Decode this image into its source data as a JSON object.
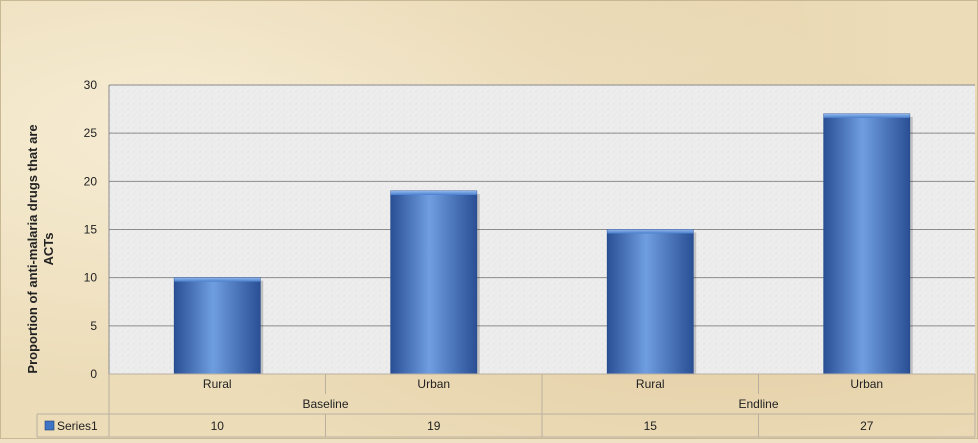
{
  "chart_data": {
    "type": "bar",
    "title": "",
    "xlabel": "",
    "ylabel": "Proportion of anti-malaria drugs that are ACTs",
    "ylim": [
      0,
      30
    ],
    "yticks": [
      "0",
      "5",
      "10",
      "15",
      "20",
      "25",
      "30"
    ],
    "categories": [
      "Rural",
      "Urban",
      "Rural",
      "Urban"
    ],
    "groups": [
      {
        "label": "Baseline",
        "categories": [
          "Rural",
          "Urban"
        ]
      },
      {
        "label": "Endline",
        "categories": [
          "Rural",
          "Urban"
        ]
      }
    ],
    "series": [
      {
        "name": "Series1",
        "values": [
          10,
          19,
          15,
          27
        ]
      }
    ],
    "data_table": {
      "row_label": "Series1",
      "values": [
        "10",
        "19",
        "15",
        "27"
      ]
    },
    "grid": true,
    "legend": "data-table",
    "colors": {
      "bar": "#3f73c4",
      "bar_light": "#6f9ee0",
      "bar_dark": "#2a4f95",
      "gridline": "#8c8c8c",
      "plot_background": "#ececec",
      "text": "#222222"
    }
  }
}
